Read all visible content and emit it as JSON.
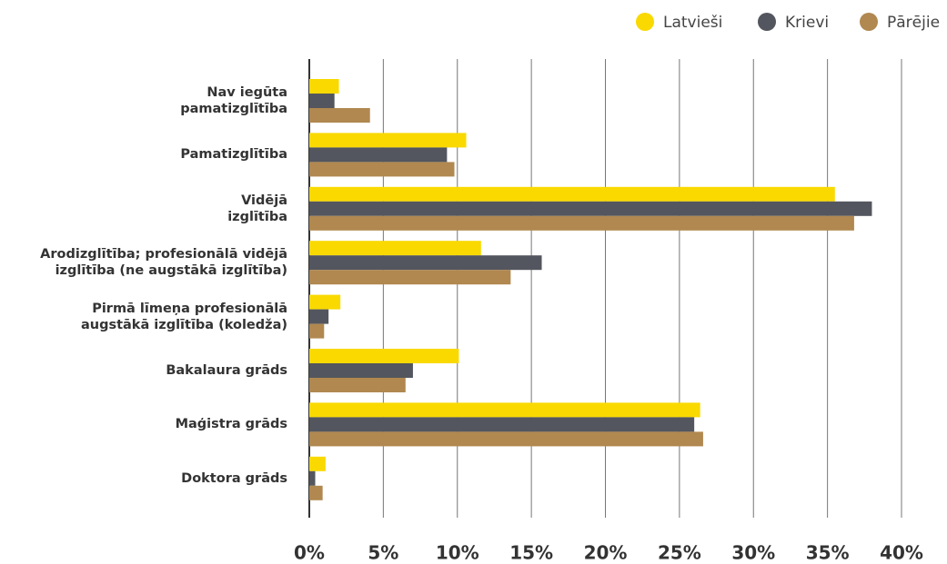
{
  "chart_data": {
    "type": "hbar",
    "categories": [
      "Nav iegūta\npamatizglītība",
      "Pamatizglītība",
      "Vidējā\nizglītība",
      "Arodizglītība; profesionālā vidējā\nizglītība (ne augstākā izglītība)",
      "Pirmā līmeņa profesionālā\naugstākā izglītība (koledža)",
      "Bakalaura grāds",
      "Maģistra grāds",
      "Doktora grāds"
    ],
    "series": [
      {
        "name": "Latvieši",
        "color": "#f9d900",
        "values": [
          2.0,
          10.6,
          35.5,
          11.6,
          2.1,
          10.1,
          26.4,
          1.1
        ]
      },
      {
        "name": "Krievi",
        "color": "#53565e",
        "values": [
          1.7,
          9.3,
          38.0,
          15.7,
          1.3,
          7.0,
          26.0,
          0.4
        ]
      },
      {
        "name": "Pārējie",
        "color": "#b08850",
        "values": [
          4.1,
          9.8,
          36.8,
          13.6,
          1.0,
          6.5,
          26.6,
          0.9
        ]
      }
    ],
    "xlim": [
      0,
      40
    ],
    "xticks": [
      {
        "value": 0,
        "label": "0%"
      },
      {
        "value": 5,
        "label": "5%"
      },
      {
        "value": 10,
        "label": "10%"
      },
      {
        "value": 15,
        "label": "15%"
      },
      {
        "value": 20,
        "label": "20%"
      },
      {
        "value": 25,
        "label": "25%"
      },
      {
        "value": 30,
        "label": "30%"
      },
      {
        "value": 35,
        "label": "35%"
      },
      {
        "value": 40,
        "label": "40%"
      }
    ],
    "grid": true,
    "legend": "top-right"
  }
}
